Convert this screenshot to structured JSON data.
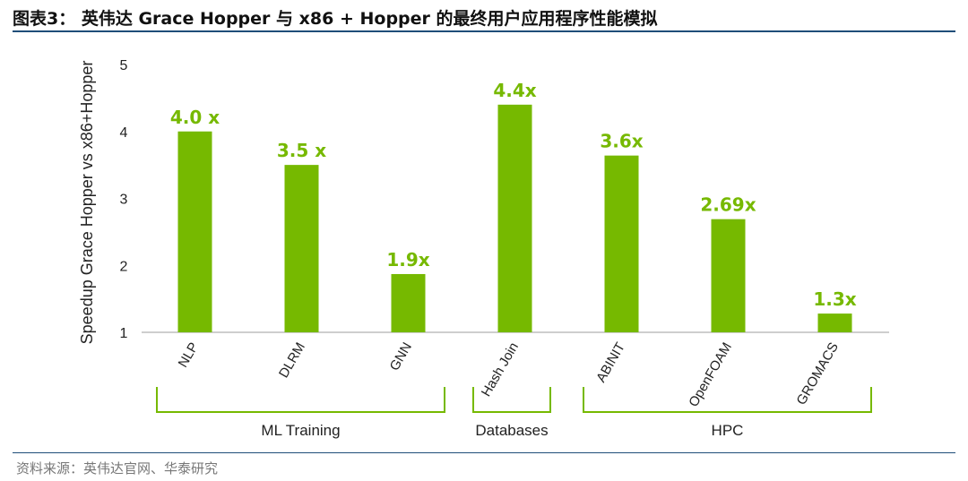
{
  "header": {
    "title": "图表3： 英伟达 Grace Hopper 与 x86 + Hopper 的最终用户应用程序性能模拟"
  },
  "footer": {
    "source": "资料来源：英伟达官网、华泰研究"
  },
  "colors": {
    "bar": "#76b900",
    "label": "#76b900",
    "rule": "#1f4e79"
  },
  "chart_data": {
    "type": "bar",
    "categories": [
      "NLP",
      "DLRM",
      "GNN",
      "Hash Join",
      "ABINIT",
      "OpenFOAM",
      "GROMACS"
    ],
    "values": [
      4.0,
      3.5,
      1.87,
      4.4,
      3.64,
      2.69,
      1.28
    ],
    "data_labels": [
      "4.0 x",
      "3.5 x",
      "1.9x",
      "4.4x",
      "3.6x",
      "2.69x",
      "1.3x"
    ],
    "ylabel": "Speedup Grace Hopper vs x86+Hopper",
    "ylim": [
      1,
      5
    ],
    "yticks": [
      1,
      2,
      3,
      4,
      5
    ],
    "groups": [
      {
        "name": "ML Training",
        "categories": [
          "NLP",
          "DLRM",
          "GNN"
        ]
      },
      {
        "name": "Databases",
        "categories": [
          "Hash Join"
        ]
      },
      {
        "name": "HPC",
        "categories": [
          "ABINIT",
          "OpenFOAM",
          "GROMACS"
        ]
      }
    ],
    "grid": false
  }
}
